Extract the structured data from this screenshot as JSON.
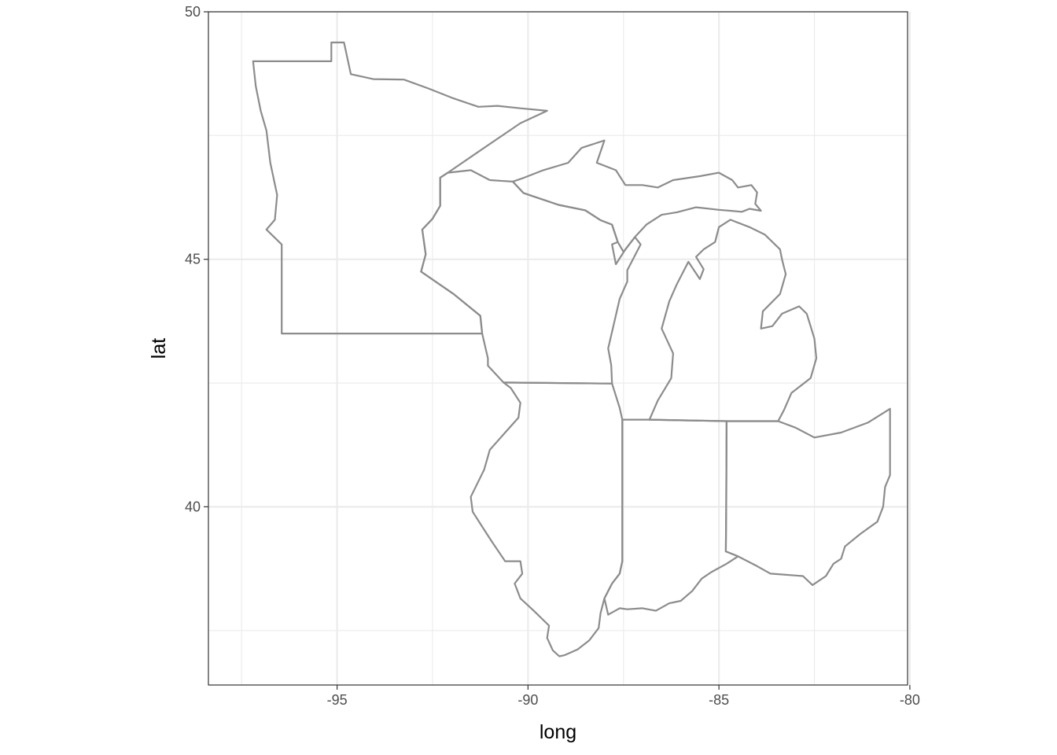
{
  "map": {
    "x_axis": {
      "title": "long",
      "ticks": [
        {
          "value": -95,
          "label": "-95"
        },
        {
          "value": -90,
          "label": "-90"
        },
        {
          "value": -85,
          "label": "-85"
        },
        {
          "value": -80,
          "label": "-80"
        }
      ],
      "minor": [
        -97.5,
        -92.5,
        -87.5,
        -82.5
      ],
      "range": [
        -98.37,
        -80.06
      ]
    },
    "y_axis": {
      "title": "lat",
      "ticks": [
        {
          "value": 40,
          "label": "40"
        },
        {
          "value": 45,
          "label": "45"
        },
        {
          "value": 50,
          "label": "50"
        }
      ],
      "minor": [
        37.5,
        42.5,
        47.5
      ],
      "range": [
        36.4,
        50
      ]
    },
    "outline_color": "#8c8c8c",
    "states": [
      {
        "name": "minnesota",
        "coords": [
          [
            -97.2,
            49.0
          ],
          [
            -95.15,
            49.0
          ],
          [
            -95.15,
            49.38
          ],
          [
            -94.82,
            49.38
          ],
          [
            -94.64,
            48.74
          ],
          [
            -94.05,
            48.64
          ],
          [
            -93.25,
            48.63
          ],
          [
            -92.6,
            48.45
          ],
          [
            -91.95,
            48.25
          ],
          [
            -91.3,
            48.08
          ],
          [
            -90.8,
            48.1
          ],
          [
            -90.2,
            48.05
          ],
          [
            -89.5,
            48.0
          ],
          [
            -90.2,
            47.75
          ],
          [
            -91.4,
            47.12
          ],
          [
            -92.1,
            46.75
          ],
          [
            -92.3,
            46.65
          ],
          [
            -92.3,
            46.08
          ],
          [
            -92.5,
            45.82
          ],
          [
            -92.77,
            45.6
          ],
          [
            -92.68,
            45.1
          ],
          [
            -92.8,
            44.75
          ],
          [
            -91.95,
            44.3
          ],
          [
            -91.25,
            43.86
          ],
          [
            -91.2,
            43.5
          ],
          [
            -96.45,
            43.5
          ],
          [
            -96.45,
            45.3
          ],
          [
            -96.85,
            45.6
          ],
          [
            -96.63,
            45.8
          ],
          [
            -96.57,
            46.3
          ],
          [
            -96.75,
            46.95
          ],
          [
            -96.85,
            47.6
          ],
          [
            -97.0,
            48.0
          ],
          [
            -97.13,
            48.5
          ],
          [
            -97.2,
            49.0
          ]
        ]
      },
      {
        "name": "wisconsin",
        "coords": [
          [
            -90.64,
            42.51
          ],
          [
            -87.8,
            42.49
          ],
          [
            -87.82,
            42.86
          ],
          [
            -87.9,
            43.2
          ],
          [
            -87.72,
            43.8
          ],
          [
            -87.6,
            44.2
          ],
          [
            -87.4,
            44.55
          ],
          [
            -87.4,
            44.78
          ],
          [
            -87.05,
            45.3
          ],
          [
            -87.2,
            45.45
          ],
          [
            -87.45,
            45.2
          ],
          [
            -87.7,
            44.9
          ],
          [
            -87.8,
            45.3
          ],
          [
            -87.65,
            45.35
          ],
          [
            -87.8,
            45.7
          ],
          [
            -88.1,
            45.79
          ],
          [
            -88.5,
            45.99
          ],
          [
            -89.2,
            46.1
          ],
          [
            -90.12,
            46.34
          ],
          [
            -90.4,
            46.57
          ],
          [
            -91.0,
            46.6
          ],
          [
            -91.5,
            46.8
          ],
          [
            -92.1,
            46.75
          ],
          [
            -92.3,
            46.65
          ],
          [
            -92.3,
            46.08
          ],
          [
            -92.5,
            45.82
          ],
          [
            -92.77,
            45.6
          ],
          [
            -92.68,
            45.1
          ],
          [
            -92.8,
            44.75
          ],
          [
            -91.95,
            44.3
          ],
          [
            -91.25,
            43.86
          ],
          [
            -91.2,
            43.5
          ],
          [
            -91.05,
            43.0
          ],
          [
            -91.05,
            42.85
          ],
          [
            -90.64,
            42.51
          ]
        ]
      },
      {
        "name": "michigan-upper",
        "coords": [
          [
            -90.4,
            46.57
          ],
          [
            -90.12,
            46.34
          ],
          [
            -89.2,
            46.1
          ],
          [
            -88.5,
            45.99
          ],
          [
            -88.1,
            45.79
          ],
          [
            -87.8,
            45.7
          ],
          [
            -87.65,
            45.35
          ],
          [
            -87.5,
            45.15
          ],
          [
            -87.2,
            45.45
          ],
          [
            -86.9,
            45.7
          ],
          [
            -86.5,
            45.9
          ],
          [
            -86.1,
            45.95
          ],
          [
            -85.6,
            46.05
          ],
          [
            -85.0,
            46.0
          ],
          [
            -84.7,
            45.98
          ],
          [
            -84.4,
            45.96
          ],
          [
            -84.2,
            46.02
          ],
          [
            -83.9,
            45.98
          ],
          [
            -84.05,
            46.12
          ],
          [
            -84.0,
            46.35
          ],
          [
            -84.15,
            46.5
          ],
          [
            -84.5,
            46.45
          ],
          [
            -84.65,
            46.6
          ],
          [
            -85.0,
            46.75
          ],
          [
            -85.5,
            46.68
          ],
          [
            -86.2,
            46.6
          ],
          [
            -86.6,
            46.45
          ],
          [
            -87.0,
            46.5
          ],
          [
            -87.45,
            46.5
          ],
          [
            -87.7,
            46.8
          ],
          [
            -88.2,
            46.95
          ],
          [
            -88.0,
            47.4
          ],
          [
            -88.6,
            47.25
          ],
          [
            -88.95,
            46.95
          ],
          [
            -89.6,
            46.8
          ],
          [
            -90.1,
            46.65
          ],
          [
            -90.4,
            46.57
          ]
        ]
      },
      {
        "name": "michigan-lower",
        "coords": [
          [
            -86.82,
            41.76
          ],
          [
            -84.8,
            41.73
          ],
          [
            -83.45,
            41.73
          ],
          [
            -83.3,
            41.95
          ],
          [
            -83.1,
            42.3
          ],
          [
            -82.6,
            42.6
          ],
          [
            -82.45,
            43.0
          ],
          [
            -82.5,
            43.4
          ],
          [
            -82.7,
            43.9
          ],
          [
            -82.9,
            44.05
          ],
          [
            -83.35,
            43.9
          ],
          [
            -83.6,
            43.65
          ],
          [
            -83.9,
            43.6
          ],
          [
            -83.85,
            43.95
          ],
          [
            -83.4,
            44.3
          ],
          [
            -83.25,
            44.7
          ],
          [
            -83.35,
            45.0
          ],
          [
            -83.4,
            45.2
          ],
          [
            -83.8,
            45.5
          ],
          [
            -84.2,
            45.65
          ],
          [
            -84.7,
            45.8
          ],
          [
            -85.0,
            45.65
          ],
          [
            -85.1,
            45.35
          ],
          [
            -85.4,
            45.2
          ],
          [
            -85.6,
            45.05
          ],
          [
            -85.4,
            44.8
          ],
          [
            -85.5,
            44.6
          ],
          [
            -85.8,
            44.95
          ],
          [
            -86.1,
            44.5
          ],
          [
            -86.3,
            44.15
          ],
          [
            -86.5,
            43.6
          ],
          [
            -86.2,
            43.1
          ],
          [
            -86.25,
            42.6
          ],
          [
            -86.6,
            42.15
          ],
          [
            -86.82,
            41.76
          ]
        ]
      },
      {
        "name": "illinois",
        "coords": [
          [
            -90.64,
            42.51
          ],
          [
            -87.8,
            42.49
          ],
          [
            -87.6,
            42.0
          ],
          [
            -87.53,
            41.76
          ],
          [
            -87.53,
            38.9
          ],
          [
            -87.6,
            38.65
          ],
          [
            -87.8,
            38.45
          ],
          [
            -88.0,
            38.15
          ],
          [
            -88.1,
            37.85
          ],
          [
            -88.15,
            37.55
          ],
          [
            -88.4,
            37.3
          ],
          [
            -88.7,
            37.12
          ],
          [
            -89.05,
            37.0
          ],
          [
            -89.18,
            36.98
          ],
          [
            -89.35,
            37.1
          ],
          [
            -89.5,
            37.35
          ],
          [
            -89.45,
            37.6
          ],
          [
            -89.85,
            37.9
          ],
          [
            -90.2,
            38.15
          ],
          [
            -90.35,
            38.45
          ],
          [
            -90.15,
            38.65
          ],
          [
            -90.2,
            38.9
          ],
          [
            -90.6,
            38.9
          ],
          [
            -90.95,
            39.3
          ],
          [
            -91.2,
            39.6
          ],
          [
            -91.45,
            39.9
          ],
          [
            -91.5,
            40.2
          ],
          [
            -91.15,
            40.75
          ],
          [
            -91.0,
            41.15
          ],
          [
            -90.6,
            41.5
          ],
          [
            -90.25,
            41.8
          ],
          [
            -90.2,
            42.1
          ],
          [
            -90.45,
            42.4
          ],
          [
            -90.64,
            42.51
          ]
        ]
      },
      {
        "name": "indiana",
        "coords": [
          [
            -87.53,
            41.76
          ],
          [
            -86.82,
            41.76
          ],
          [
            -84.8,
            41.73
          ],
          [
            -84.81,
            40.0
          ],
          [
            -84.82,
            39.1
          ],
          [
            -84.5,
            39.0
          ],
          [
            -84.8,
            38.85
          ],
          [
            -85.2,
            38.68
          ],
          [
            -85.45,
            38.55
          ],
          [
            -85.7,
            38.3
          ],
          [
            -86.0,
            38.1
          ],
          [
            -86.3,
            38.05
          ],
          [
            -86.65,
            37.9
          ],
          [
            -87.0,
            37.95
          ],
          [
            -87.4,
            37.93
          ],
          [
            -87.6,
            37.95
          ],
          [
            -87.9,
            37.82
          ],
          [
            -88.0,
            38.15
          ],
          [
            -87.8,
            38.45
          ],
          [
            -87.6,
            38.65
          ],
          [
            -87.53,
            38.9
          ],
          [
            -87.53,
            41.76
          ]
        ]
      },
      {
        "name": "ohio",
        "coords": [
          [
            -84.8,
            41.73
          ],
          [
            -83.45,
            41.73
          ],
          [
            -83.0,
            41.6
          ],
          [
            -82.5,
            41.4
          ],
          [
            -81.8,
            41.5
          ],
          [
            -81.1,
            41.7
          ],
          [
            -80.52,
            41.98
          ],
          [
            -80.52,
            40.64
          ],
          [
            -80.65,
            40.4
          ],
          [
            -80.7,
            40.0
          ],
          [
            -80.85,
            39.7
          ],
          [
            -81.3,
            39.45
          ],
          [
            -81.7,
            39.2
          ],
          [
            -81.8,
            38.95
          ],
          [
            -82.0,
            38.85
          ],
          [
            -82.2,
            38.6
          ],
          [
            -82.55,
            38.42
          ],
          [
            -82.8,
            38.6
          ],
          [
            -83.3,
            38.63
          ],
          [
            -83.65,
            38.65
          ],
          [
            -84.0,
            38.8
          ],
          [
            -84.5,
            39.0
          ],
          [
            -84.82,
            39.1
          ],
          [
            -84.81,
            40.0
          ],
          [
            -84.8,
            41.73
          ]
        ]
      }
    ]
  }
}
